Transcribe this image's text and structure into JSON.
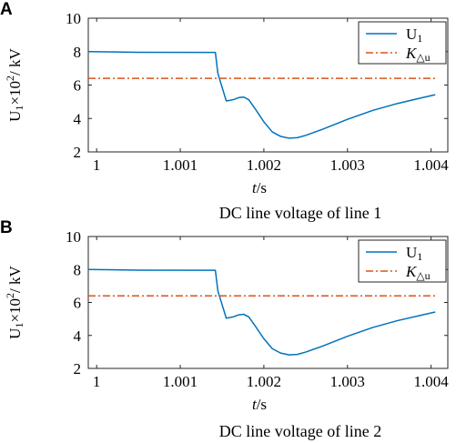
{
  "chart_data": [
    {
      "panel_label": "A",
      "type": "line",
      "caption": "DC line voltage of line 1",
      "xlabel_t": "t",
      "xlabel_unit": "/s",
      "ylabel_base": "U",
      "ylabel_sub": "1",
      "ylabel_times": "×10",
      "ylabel_exp": "2",
      "ylabel_unit": "/ kV",
      "xlim": [
        0.9999,
        1.0042
      ],
      "ylim": [
        2,
        10
      ],
      "xticks": [
        1,
        1.001,
        1.002,
        1.003,
        1.004
      ],
      "xtick_labels": [
        "1",
        "1.001",
        "1.002",
        "1.003",
        "1.004"
      ],
      "yticks": [
        2,
        4,
        6,
        8,
        10
      ],
      "ytick_labels": [
        "2",
        "4",
        "6",
        "8",
        "10"
      ],
      "legend_position": "top-right",
      "series": [
        {
          "name_main": "U",
          "name_sub": "1",
          "color": "#0072BD",
          "style": "solid",
          "points": [
            [
              0.9999,
              8.0
            ],
            [
              1.0005,
              7.96
            ],
            [
              1.00142,
              7.95
            ],
            [
              1.00145,
              6.7
            ],
            [
              1.00155,
              5.05
            ],
            [
              1.00163,
              5.12
            ],
            [
              1.0017,
              5.25
            ],
            [
              1.00176,
              5.28
            ],
            [
              1.00182,
              5.12
            ],
            [
              1.0019,
              4.55
            ],
            [
              1.002,
              3.8
            ],
            [
              1.0021,
              3.2
            ],
            [
              1.0022,
              2.93
            ],
            [
              1.0023,
              2.82
            ],
            [
              1.0024,
              2.85
            ],
            [
              1.0025,
              2.99
            ],
            [
              1.0027,
              3.35
            ],
            [
              1.003,
              3.95
            ],
            [
              1.0033,
              4.48
            ],
            [
              1.0036,
              4.9
            ],
            [
              1.0039,
              5.25
            ],
            [
              1.00405,
              5.42
            ]
          ]
        },
        {
          "name_main": "K",
          "name_sub": "△u",
          "color": "#D95319",
          "style": "dashdot",
          "points": [
            [
              0.9999,
              6.4
            ],
            [
              1.00405,
              6.4
            ]
          ]
        }
      ]
    },
    {
      "panel_label": "B",
      "type": "line",
      "caption": "DC line voltage of line 2",
      "xlabel_t": "t",
      "xlabel_unit": "/s",
      "ylabel_base": "U",
      "ylabel_sub": "1",
      "ylabel_times": "×10",
      "ylabel_exp": "2",
      "ylabel_unit": "/ kV",
      "xlim": [
        0.9999,
        1.0042
      ],
      "ylim": [
        2,
        10
      ],
      "xticks": [
        1,
        1.001,
        1.002,
        1.003,
        1.004
      ],
      "xtick_labels": [
        "1",
        "1.001",
        "1.002",
        "1.003",
        "1.004"
      ],
      "yticks": [
        2,
        4,
        6,
        8,
        10
      ],
      "ytick_labels": [
        "2",
        "4",
        "6",
        "8",
        "10"
      ],
      "legend_position": "top-right",
      "series": [
        {
          "name_main": "U",
          "name_sub": "1",
          "color": "#0072BD",
          "style": "solid",
          "points": [
            [
              0.9999,
              8.0
            ],
            [
              1.0005,
              7.96
            ],
            [
              1.00142,
              7.95
            ],
            [
              1.00145,
              6.7
            ],
            [
              1.00155,
              5.05
            ],
            [
              1.00163,
              5.12
            ],
            [
              1.0017,
              5.25
            ],
            [
              1.00176,
              5.28
            ],
            [
              1.00182,
              5.12
            ],
            [
              1.0019,
              4.55
            ],
            [
              1.002,
              3.8
            ],
            [
              1.0021,
              3.2
            ],
            [
              1.0022,
              2.93
            ],
            [
              1.0023,
              2.82
            ],
            [
              1.0024,
              2.85
            ],
            [
              1.0025,
              2.99
            ],
            [
              1.0027,
              3.35
            ],
            [
              1.003,
              3.95
            ],
            [
              1.0033,
              4.48
            ],
            [
              1.0036,
              4.9
            ],
            [
              1.0039,
              5.25
            ],
            [
              1.00405,
              5.42
            ]
          ]
        },
        {
          "name_main": "K",
          "name_sub": "△u",
          "color": "#D95319",
          "style": "dashdot",
          "points": [
            [
              0.9999,
              6.4
            ],
            [
              1.00405,
              6.4
            ]
          ]
        }
      ]
    }
  ]
}
